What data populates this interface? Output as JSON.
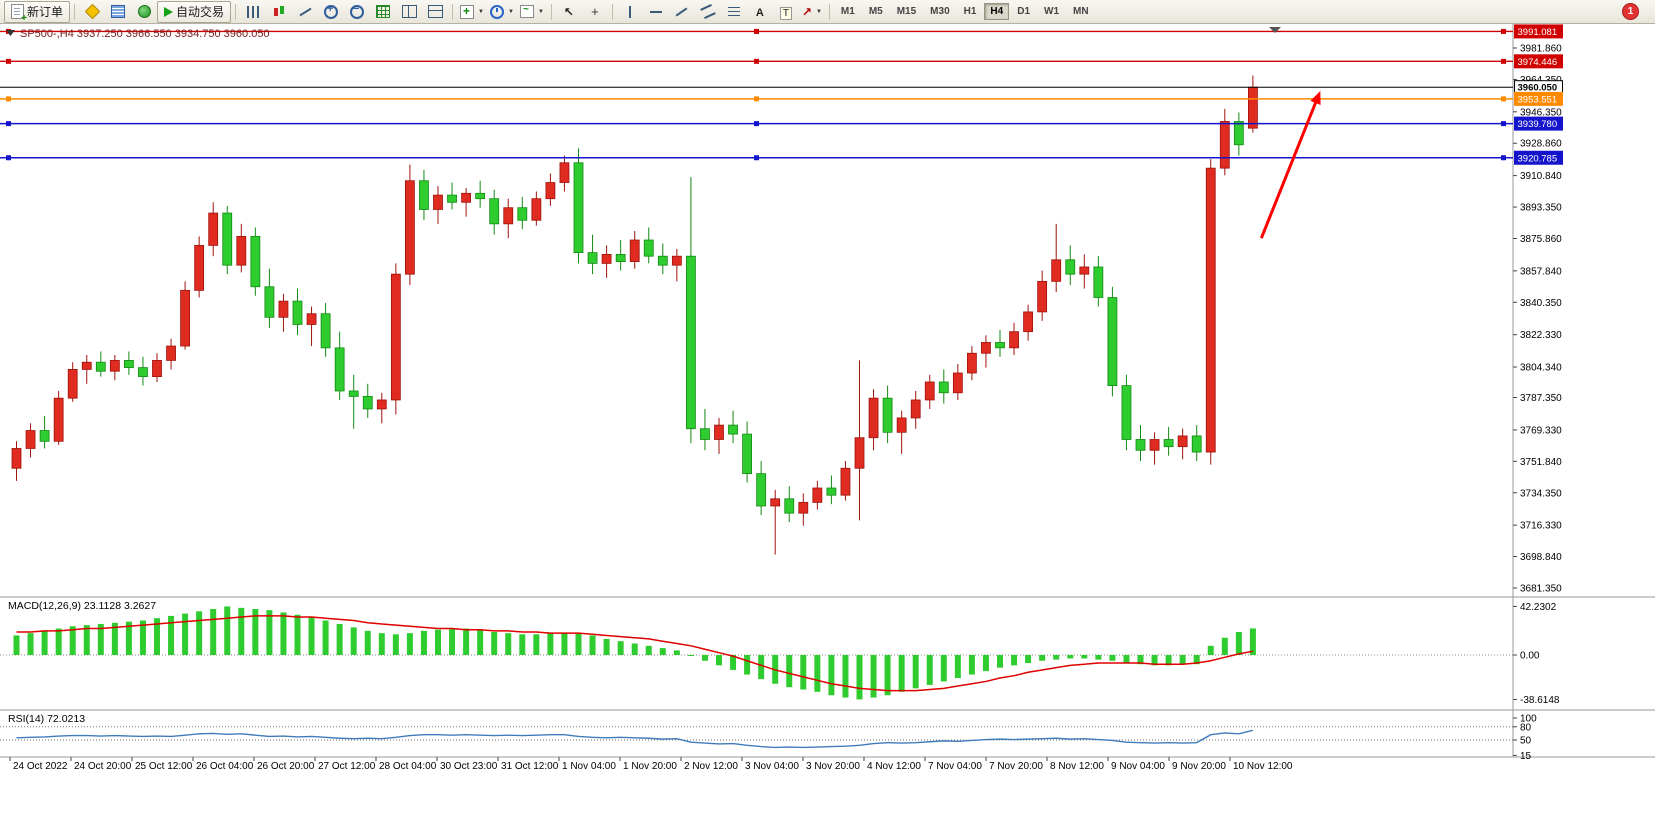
{
  "toolbar": {
    "groups": [
      {
        "items": [
          {
            "icon": "new-order-icon",
            "label": "新订单"
          }
        ]
      },
      {
        "items": [
          {
            "icon": "metaeditor-icon"
          },
          {
            "icon": "market-watch-icon"
          },
          {
            "icon": "navigator-icon"
          },
          {
            "icon": "autotrading-icon",
            "label": "自动交易"
          }
        ]
      },
      {
        "items": [
          {
            "icon": "bar-chart-icon"
          },
          {
            "icon": "candlestick-chart-icon"
          },
          {
            "icon": "line-chart-icon"
          },
          {
            "icon": "zoom-in-icon"
          },
          {
            "icon": "zoom-out-icon"
          },
          {
            "icon": "grid-icon"
          },
          {
            "icon": "tile-vertical-icon"
          },
          {
            "icon": "tile-horizontal-icon"
          }
        ]
      },
      {
        "items": [
          {
            "icon": "new-chart-icon",
            "dropdown": true
          },
          {
            "icon": "period-icon",
            "dropdown": true
          },
          {
            "icon": "template-icon",
            "dropdown": true
          }
        ]
      },
      {
        "items": [
          {
            "icon": "cursor-icon"
          },
          {
            "icon": "crosshair-icon"
          }
        ]
      },
      {
        "items": [
          {
            "icon": "vertical-line-icon"
          },
          {
            "icon": "horizontal-line-icon"
          },
          {
            "icon": "trendline-icon"
          },
          {
            "icon": "channel-icon"
          },
          {
            "icon": "fibonacci-icon"
          },
          {
            "icon": "text-icon"
          },
          {
            "icon": "text-label-icon"
          },
          {
            "icon": "arrows-icon",
            "dropdown": true
          }
        ]
      }
    ],
    "timeframes": [
      "M1",
      "M5",
      "M15",
      "M30",
      "H1",
      "H4",
      "D1",
      "W1",
      "MN"
    ],
    "active_timeframe": "H4",
    "notification_badge": "1"
  },
  "chart": {
    "symbol_period": "SP500-,H4",
    "open": "3937.250",
    "high": "3966.550",
    "low": "3934.750",
    "close": "3960.050"
  },
  "indicators": {
    "macd": {
      "name": "MACD(12,26,9)",
      "main_value": "23.1128",
      "signal_value": "3.2627",
      "axis": [
        "42.2302",
        "0.00",
        "-38.6148"
      ]
    },
    "rsi": {
      "name": "RSI(14)",
      "value": "72.0213",
      "axis": [
        "100",
        "80",
        "50",
        "15"
      ]
    }
  },
  "colors": {
    "up": "#e02b20",
    "up_dark": "#9e120c",
    "down": "#2ecc2e",
    "down_dark": "#128a12",
    "macd_hist": "#2ecc2e",
    "macd_signal": "#e00000",
    "rsi_line": "#3f7cba",
    "separator": "#9a9a9a",
    "arrow": "#ff0000",
    "title_text": "#7b2020"
  },
  "chart_data": {
    "type": "candlestick",
    "symbol": "SP500-",
    "timeframe": "H4",
    "price_ticks": [
      "3981.860",
      "3964.350",
      "3946.350",
      "3928.860",
      "3910.840",
      "3893.350",
      "3875.860",
      "3857.840",
      "3840.350",
      "3822.330",
      "3804.340",
      "3787.350",
      "3769.330",
      "3751.840",
      "3734.350",
      "3716.330",
      "3698.840",
      "3681.350"
    ],
    "time_labels": [
      "24 Oct 2022",
      "24 Oct 20:00",
      "25 Oct 12:00",
      "26 Oct 04:00",
      "26 Oct 20:00",
      "27 Oct 12:00",
      "28 Oct 04:00",
      "30 Oct 23:00",
      "31 Oct 12:00",
      "1 Nov 04:00",
      "1 Nov 20:00",
      "2 Nov 12:00",
      "3 Nov 04:00",
      "3 Nov 20:00",
      "4 Nov 12:00",
      "7 Nov 04:00",
      "7 Nov 20:00",
      "8 Nov 12:00",
      "9 Nov 04:00",
      "9 Nov 20:00",
      "10 Nov 12:00"
    ],
    "candles": [
      [
        3748,
        3763,
        3741,
        3759
      ],
      [
        3759,
        3773,
        3754,
        3769
      ],
      [
        3769,
        3777,
        3759,
        3763
      ],
      [
        3763,
        3791,
        3761,
        3787
      ],
      [
        3787,
        3807,
        3785,
        3803
      ],
      [
        3803,
        3811,
        3795,
        3807
      ],
      [
        3807,
        3813,
        3799,
        3802
      ],
      [
        3802,
        3811,
        3797,
        3808
      ],
      [
        3808,
        3813,
        3800,
        3804
      ],
      [
        3804,
        3810,
        3794,
        3799
      ],
      [
        3799,
        3812,
        3796,
        3808
      ],
      [
        3808,
        3820,
        3803,
        3816
      ],
      [
        3816,
        3852,
        3814,
        3847
      ],
      [
        3847,
        3877,
        3843,
        3872
      ],
      [
        3872,
        3896,
        3866,
        3890
      ],
      [
        3890,
        3894,
        3856,
        3861
      ],
      [
        3861,
        3884,
        3857,
        3877
      ],
      [
        3877,
        3882,
        3844,
        3849
      ],
      [
        3849,
        3859,
        3826,
        3832
      ],
      [
        3832,
        3845,
        3824,
        3841
      ],
      [
        3841,
        3848,
        3822,
        3828
      ],
      [
        3828,
        3838,
        3816,
        3834
      ],
      [
        3834,
        3840,
        3810,
        3815
      ],
      [
        3815,
        3824,
        3786,
        3791
      ],
      [
        3791,
        3800,
        3770,
        3788
      ],
      [
        3788,
        3795,
        3776,
        3781
      ],
      [
        3781,
        3790,
        3773,
        3786
      ],
      [
        3786,
        3862,
        3778,
        3856
      ],
      [
        3856,
        3917,
        3850,
        3908
      ],
      [
        3908,
        3914,
        3886,
        3892
      ],
      [
        3892,
        3905,
        3884,
        3900
      ],
      [
        3900,
        3907,
        3892,
        3896
      ],
      [
        3896,
        3904,
        3888,
        3901
      ],
      [
        3901,
        3908,
        3893,
        3898
      ],
      [
        3898,
        3903,
        3878,
        3884
      ],
      [
        3884,
        3898,
        3876,
        3893
      ],
      [
        3893,
        3899,
        3881,
        3886
      ],
      [
        3886,
        3902,
        3883,
        3898
      ],
      [
        3898,
        3912,
        3894,
        3907
      ],
      [
        3907,
        3922,
        3902,
        3918
      ],
      [
        3918,
        3926,
        3862,
        3868
      ],
      [
        3868,
        3878,
        3856,
        3862
      ],
      [
        3862,
        3872,
        3854,
        3867
      ],
      [
        3867,
        3875,
        3858,
        3863
      ],
      [
        3863,
        3880,
        3859,
        3875
      ],
      [
        3875,
        3882,
        3862,
        3866
      ],
      [
        3866,
        3873,
        3856,
        3861
      ],
      [
        3861,
        3870,
        3852,
        3866
      ],
      [
        3866,
        3910,
        3762,
        3770
      ],
      [
        3770,
        3781,
        3758,
        3764
      ],
      [
        3764,
        3776,
        3756,
        3772
      ],
      [
        3772,
        3780,
        3762,
        3767
      ],
      [
        3767,
        3774,
        3740,
        3745
      ],
      [
        3745,
        3752,
        3722,
        3727
      ],
      [
        3727,
        3736,
        3700,
        3731
      ],
      [
        3731,
        3738,
        3718,
        3723
      ],
      [
        3723,
        3734,
        3716,
        3729
      ],
      [
        3729,
        3741,
        3725,
        3737
      ],
      [
        3737,
        3744,
        3728,
        3733
      ],
      [
        3733,
        3752,
        3730,
        3748
      ],
      [
        3748,
        3808,
        3719,
        3765
      ],
      [
        3765,
        3792,
        3758,
        3787
      ],
      [
        3787,
        3794,
        3762,
        3768
      ],
      [
        3768,
        3780,
        3756,
        3776
      ],
      [
        3776,
        3791,
        3770,
        3786
      ],
      [
        3786,
        3800,
        3781,
        3796
      ],
      [
        3796,
        3803,
        3784,
        3790
      ],
      [
        3790,
        3806,
        3786,
        3801
      ],
      [
        3801,
        3816,
        3797,
        3812
      ],
      [
        3812,
        3822,
        3804,
        3818
      ],
      [
        3818,
        3825,
        3810,
        3815
      ],
      [
        3815,
        3829,
        3811,
        3824
      ],
      [
        3824,
        3839,
        3819,
        3835
      ],
      [
        3835,
        3858,
        3830,
        3852
      ],
      [
        3852,
        3884,
        3846,
        3864
      ],
      [
        3864,
        3872,
        3850,
        3856
      ],
      [
        3856,
        3867,
        3848,
        3860
      ],
      [
        3860,
        3866,
        3838,
        3843
      ],
      [
        3843,
        3849,
        3788,
        3794
      ],
      [
        3794,
        3800,
        3758,
        3764
      ],
      [
        3764,
        3772,
        3752,
        3758
      ],
      [
        3758,
        3768,
        3750,
        3764
      ],
      [
        3764,
        3771,
        3755,
        3760
      ],
      [
        3760,
        3770,
        3753,
        3766
      ],
      [
        3766,
        3772,
        3752,
        3757
      ],
      [
        3757,
        3920,
        3750,
        3915
      ],
      [
        3915,
        3948,
        3911,
        3941
      ],
      [
        3941,
        3946,
        3922,
        3928
      ],
      [
        3937.25,
        3966.55,
        3934.75,
        3960.05
      ]
    ],
    "macd_histogram": [
      17,
      19,
      21,
      23,
      25,
      26,
      27,
      28,
      29,
      30,
      32,
      34,
      36,
      38,
      40,
      42.2302,
      41,
      40,
      39,
      37,
      35,
      33,
      30,
      27,
      24,
      21,
      19,
      18,
      19,
      21,
      22,
      23,
      23,
      22,
      20,
      19,
      18,
      18,
      19,
      19,
      19,
      17,
      14,
      12,
      10,
      8,
      6,
      4,
      0,
      -5,
      -9,
      -13,
      -17,
      -21,
      -25,
      -28,
      -30,
      -32,
      -35,
      -37,
      -38.6148,
      -37,
      -35,
      -32,
      -29,
      -26,
      -23,
      -20,
      -17,
      -14,
      -11,
      -9,
      -7,
      -5,
      -4,
      -3,
      -3,
      -4,
      -5,
      -7,
      -8,
      -9,
      -9,
      -8,
      -8,
      8,
      15,
      20,
      23.1128
    ],
    "macd_signal": [
      20,
      20,
      21,
      21,
      22,
      23,
      23,
      24,
      25,
      26,
      27,
      28,
      29,
      30,
      31,
      32,
      33,
      34,
      34,
      34,
      33,
      33,
      32,
      31,
      30,
      28,
      27,
      26,
      25,
      24,
      23,
      23,
      22,
      22,
      21,
      21,
      20,
      20,
      19,
      19,
      19,
      18,
      17,
      16,
      15,
      14,
      12,
      10,
      8,
      5,
      2,
      -1,
      -5,
      -9,
      -13,
      -16,
      -19,
      -22,
      -25,
      -27,
      -29,
      -30,
      -31,
      -31,
      -31,
      -30,
      -29,
      -27,
      -25,
      -23,
      -20,
      -18,
      -15,
      -13,
      -11,
      -9,
      -8,
      -7,
      -7,
      -7,
      -7,
      -8,
      -8,
      -8,
      -7,
      -5,
      -2,
      1,
      3.2627
    ],
    "rsi": [
      55,
      56,
      57,
      59,
      60,
      60,
      59,
      60,
      59,
      58,
      59,
      58,
      61,
      64,
      65,
      63,
      64,
      61,
      58,
      59,
      57,
      58,
      56,
      54,
      53,
      54,
      53,
      56,
      60,
      62,
      62,
      61,
      62,
      61,
      60,
      61,
      60,
      61,
      62,
      62,
      58,
      56,
      55,
      56,
      55,
      54,
      52,
      53,
      45,
      43,
      41,
      42,
      38,
      35,
      33,
      34,
      33,
      34,
      35,
      36,
      38,
      42,
      44,
      43,
      44,
      46,
      48,
      47,
      49,
      51,
      52,
      51,
      52,
      53,
      54,
      52,
      53,
      51,
      49,
      45,
      44,
      43,
      44,
      43,
      44,
      62,
      66,
      64,
      72.0213
    ],
    "rsi_levels": [
      80,
      50
    ],
    "hlines": [
      {
        "price": 3991.081,
        "label": "3991.081",
        "color": "#d00000",
        "badge_bg": "#d00000",
        "badge_fg": "#ffffff",
        "handles": true,
        "current": false
      },
      {
        "price": 3974.446,
        "label": "3974.446",
        "color": "#d00000",
        "badge_bg": "#d00000",
        "badge_fg": "#ffffff",
        "handles": true,
        "current": false
      },
      {
        "price": 3960.05,
        "label": "3960.050",
        "color": "#000000",
        "badge_bg": "#ffffff",
        "badge_fg": "#000000",
        "handles": false,
        "current": true
      },
      {
        "price": 3953.551,
        "label": "3953.551",
        "color": "#ff8a00",
        "badge_bg": "#ff8a00",
        "badge_fg": "#ffffff",
        "handles": true,
        "current": false
      },
      {
        "price": 3939.78,
        "label": "3939.780",
        "color": "#1414cc",
        "badge_bg": "#1414cc",
        "badge_fg": "#ffffff",
        "handles": true,
        "current": false
      },
      {
        "price": 3920.785,
        "label": "3920.785",
        "color": "#1414cc",
        "badge_bg": "#1414cc",
        "badge_fg": "#ffffff",
        "handles": true,
        "current": false
      }
    ],
    "arrow": {
      "from_bar": 88.6,
      "from_price": 3876,
      "to_bar": 92.8,
      "to_price": 3958,
      "color": "#ff0000"
    }
  }
}
